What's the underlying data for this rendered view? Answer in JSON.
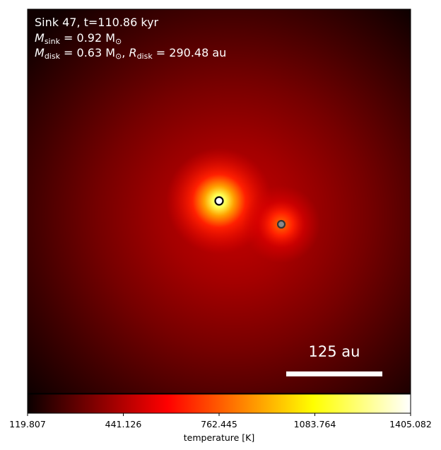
{
  "info": {
    "line1": "Sink 47, t=110.86 kyr",
    "msink_symbol": "M",
    "msink_sub": "sink",
    "msink_value": " = 0.92 M",
    "msink_sun": "⊙",
    "mdisk_symbol": "M",
    "mdisk_sub": "disk",
    "mdisk_value": " = 0.63 M",
    "mdisk_sun": "⊙",
    "mdisk_sep": ", ",
    "rdisk_symbol": "R",
    "rdisk_sub": "disk",
    "rdisk_value": " = 290.48 au"
  },
  "scale_bar": {
    "label": "125 au"
  },
  "colorbar": {
    "label": "temperature [K]",
    "ticks": [
      "119.807",
      "441.126",
      "762.445",
      "1083.764",
      "1405.082"
    ],
    "min": 119.807,
    "max": 1405.082,
    "colormap": "hot"
  },
  "sinks": [
    {
      "name": "primary-sink",
      "fill": "#ffffff",
      "stroke": "#000000"
    },
    {
      "name": "secondary-sink",
      "fill": "#8a8a8a",
      "stroke": "#333333"
    }
  ],
  "colors": {
    "background": "#000000",
    "hot_core": "#ffff40",
    "mid": "#ff0000",
    "outer": "#3a0000"
  }
}
